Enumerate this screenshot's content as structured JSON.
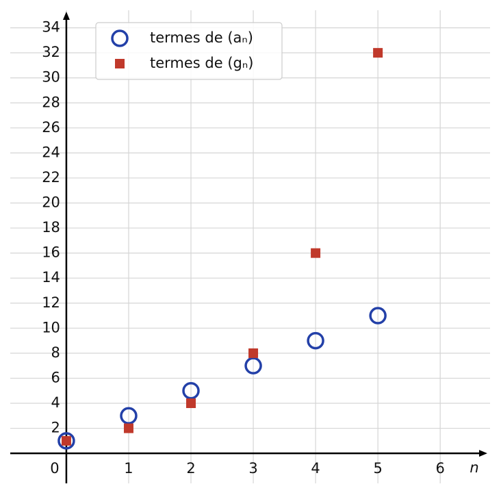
{
  "chart_data": {
    "type": "scatter",
    "x_label": "n",
    "x": [
      0,
      1,
      2,
      3,
      4,
      5
    ],
    "series": [
      {
        "name": "termes de (aₙ)",
        "color": "#2340a8",
        "marker": "circle",
        "values": [
          1,
          3,
          5,
          7,
          9,
          11
        ]
      },
      {
        "name": "termes de (gₙ)",
        "color": "#c0392b",
        "marker": "square",
        "values": [
          1,
          2,
          4,
          8,
          16,
          32
        ]
      }
    ],
    "xlim": [
      -0.9,
      6.8
    ],
    "ylim": [
      -2.4,
      35.4
    ],
    "xticks": [
      0,
      1,
      2,
      3,
      4,
      5,
      6
    ],
    "yticks": [
      2,
      4,
      6,
      8,
      10,
      12,
      14,
      16,
      18,
      20,
      22,
      24,
      26,
      28,
      30,
      32,
      34
    ],
    "grid": true,
    "legend": "upper left"
  }
}
